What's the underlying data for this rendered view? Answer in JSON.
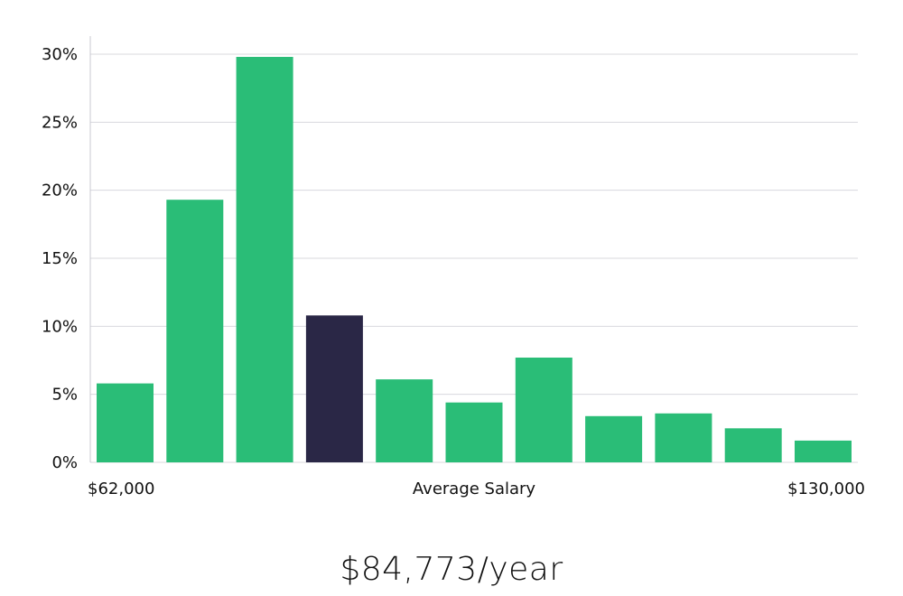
{
  "salary_text": "$84,773/year",
  "colors": {
    "bar": "#2abd77",
    "highlight": "#2a2746",
    "grid": "#d8d8de",
    "axis": "#c8c8d0"
  },
  "chart_data": {
    "type": "bar",
    "title": "",
    "xlabel": "Average Salary",
    "ylabel": "",
    "x_min_label": "$62,000",
    "x_max_label": "$130,000",
    "ylim": [
      0,
      31
    ],
    "yticks": [
      0,
      5,
      10,
      15,
      20,
      25,
      30
    ],
    "ytick_labels": [
      "0%",
      "5%",
      "10%",
      "15%",
      "20%",
      "25%",
      "30%"
    ],
    "grid": true,
    "highlight_index": 3,
    "values": [
      5.8,
      19.3,
      29.8,
      10.8,
      6.1,
      4.4,
      7.7,
      3.4,
      3.6,
      2.5,
      1.6
    ]
  }
}
